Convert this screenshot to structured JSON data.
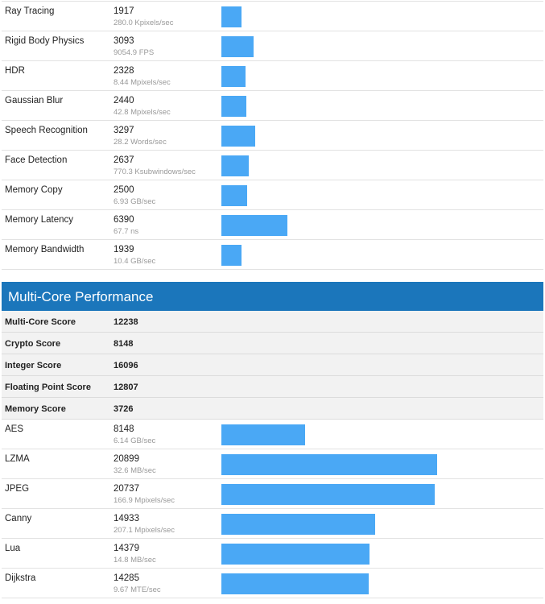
{
  "single_core_tail": [
    {
      "name": "Ray Tracing",
      "score": "1917",
      "desc": "280.0 Kpixels/sec",
      "bar": 1917
    },
    {
      "name": "Rigid Body Physics",
      "score": "3093",
      "desc": "9054.9 FPS",
      "bar": 3093
    },
    {
      "name": "HDR",
      "score": "2328",
      "desc": "8.44 Mpixels/sec",
      "bar": 2328
    },
    {
      "name": "Gaussian Blur",
      "score": "2440",
      "desc": "42.8 Mpixels/sec",
      "bar": 2440
    },
    {
      "name": "Speech Recognition",
      "score": "3297",
      "desc": "28.2 Words/sec",
      "bar": 3297
    },
    {
      "name": "Face Detection",
      "score": "2637",
      "desc": "770.3 Ksubwindows/sec",
      "bar": 2637
    },
    {
      "name": "Memory Copy",
      "score": "2500",
      "desc": "6.93 GB/sec",
      "bar": 2500
    },
    {
      "name": "Memory Latency",
      "score": "6390",
      "desc": "67.7 ns",
      "bar": 6390
    },
    {
      "name": "Memory Bandwidth",
      "score": "1939",
      "desc": "10.4 GB/sec",
      "bar": 1939
    }
  ],
  "multi_core": {
    "title": "Multi-Core Performance",
    "summary": [
      {
        "name": "Multi-Core Score",
        "value": "12238"
      },
      {
        "name": "Crypto Score",
        "value": "8148"
      },
      {
        "name": "Integer Score",
        "value": "16096"
      },
      {
        "name": "Floating Point Score",
        "value": "12807"
      },
      {
        "name": "Memory Score",
        "value": "3726"
      }
    ],
    "rows": [
      {
        "name": "AES",
        "score": "8148",
        "desc": "6.14 GB/sec",
        "bar": 8148
      },
      {
        "name": "LZMA",
        "score": "20899",
        "desc": "32.6 MB/sec",
        "bar": 20899
      },
      {
        "name": "JPEG",
        "score": "20737",
        "desc": "166.9 Mpixels/sec",
        "bar": 20737
      },
      {
        "name": "Canny",
        "score": "14933",
        "desc": "207.1 Mpixels/sec",
        "bar": 14933
      },
      {
        "name": "Lua",
        "score": "14379",
        "desc": "14.8 MB/sec",
        "bar": 14379
      },
      {
        "name": "Dijkstra",
        "score": "14285",
        "desc": "9.67 MTE/sec",
        "bar": 14285
      }
    ]
  },
  "colors": {
    "bar": "#4aa8f5",
    "header": "#1b76bb"
  }
}
